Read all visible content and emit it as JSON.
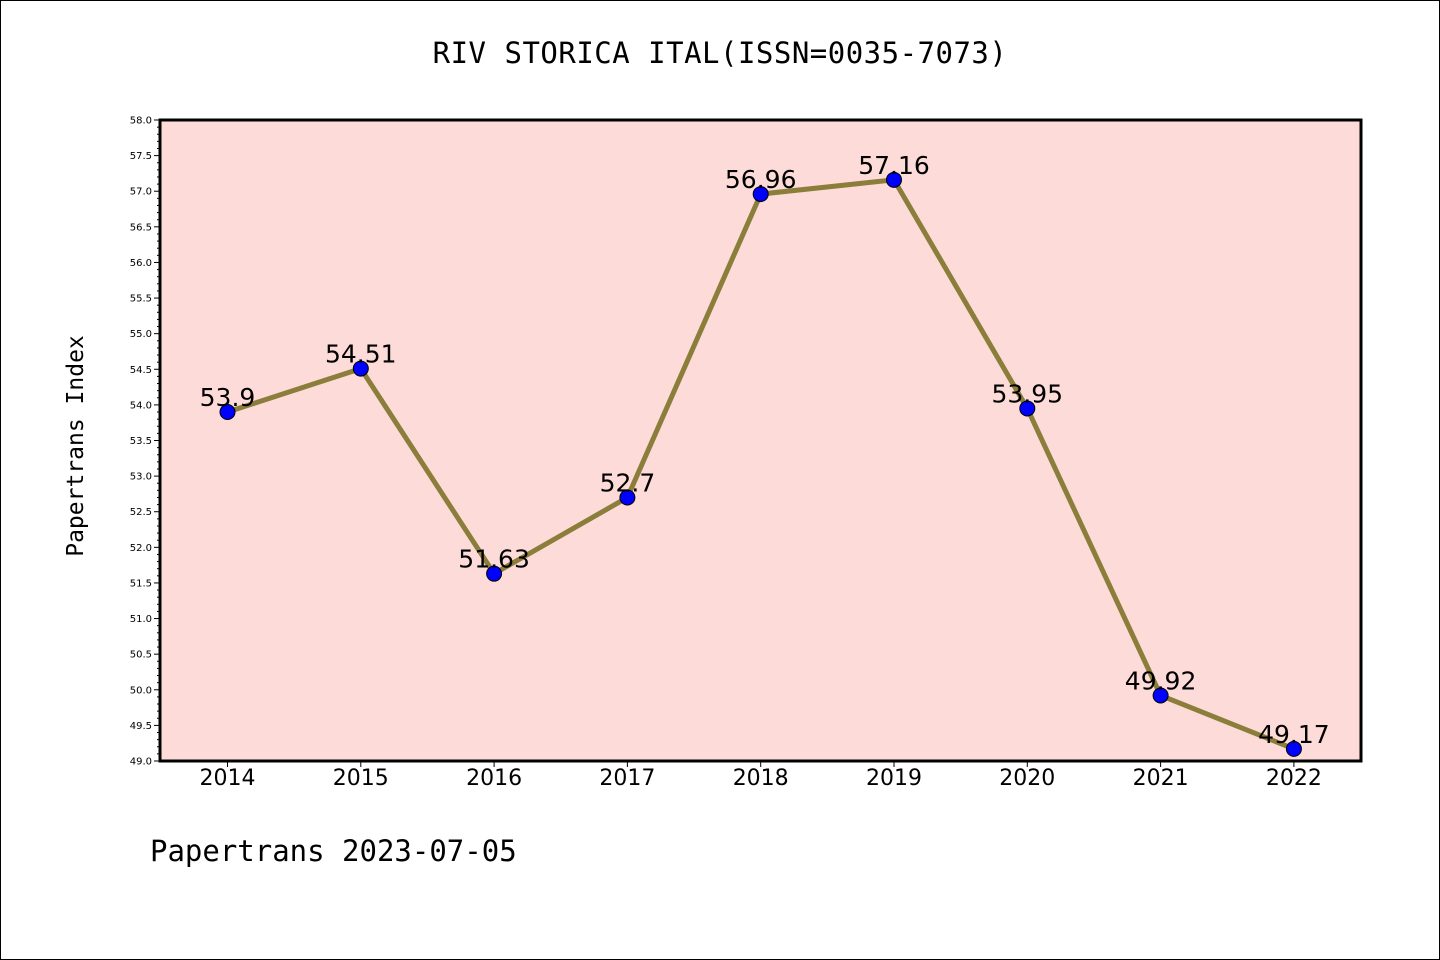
{
  "chart_data": {
    "type": "line",
    "title": "RIV STORICA ITAL(ISSN=0035-7073)",
    "xlabel": "",
    "ylabel": "Papertrans Index",
    "footer": "Papertrans 2023-07-05",
    "x": [
      "2014",
      "2015",
      "2016",
      "2017",
      "2018",
      "2019",
      "2020",
      "2021",
      "2022"
    ],
    "series": [
      {
        "values": [
          53.9,
          54.51,
          51.63,
          52.7,
          56.96,
          57.16,
          53.95,
          49.92,
          49.17
        ],
        "labels": [
          "53.9",
          "54.51",
          "51.63",
          "52.7",
          "56.96",
          "57.16",
          "53.95",
          "49.92",
          "49.17"
        ]
      }
    ],
    "ylim": [
      49.0,
      58.0
    ],
    "yticks": [
      "49.0",
      "49.5",
      "50.0",
      "50.5",
      "51.0",
      "51.5",
      "52.0",
      "52.5",
      "53.0",
      "53.5",
      "54.0",
      "54.5",
      "55.0",
      "55.5",
      "56.0",
      "56.5",
      "57.0",
      "57.5",
      "58.0"
    ],
    "grid": false,
    "colors": {
      "plot_background": "#fddbd9",
      "line": "#8b7d3a",
      "marker": "#0000ff"
    }
  }
}
